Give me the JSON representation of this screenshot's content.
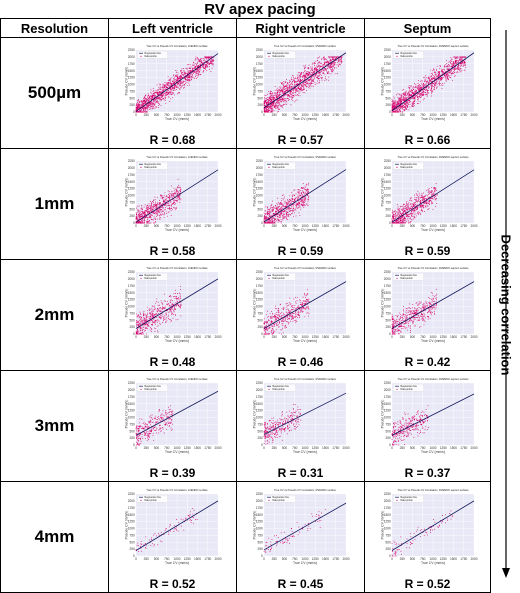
{
  "title": "RV apex pacing",
  "headers": [
    "Resolution",
    "Left ventricle",
    "Right ventricle",
    "Septum"
  ],
  "side_label": "Decreasing correlation",
  "colors": {
    "plot_bg": "#e8e8f6",
    "points": "#d6006b",
    "line": "#141a5e",
    "grid": "#ffffff"
  },
  "rows": [
    {
      "resolution": "500µm",
      "r": [
        "R = 0.68",
        "R = 0.57",
        "R = 0.66"
      ]
    },
    {
      "resolution": "1mm",
      "r": [
        "R = 0.58",
        "R = 0.59",
        "R = 0.59"
      ]
    },
    {
      "resolution": "2mm",
      "r": [
        "R = 0.48",
        "R = 0.46",
        "R = 0.42"
      ]
    },
    {
      "resolution": "3mm",
      "r": [
        "R = 0.39",
        "R = 0.31",
        "R = 0.37"
      ]
    },
    {
      "resolution": "4mm",
      "r": [
        "R = 0.52",
        "R = 0.45",
        "R = 0.52"
      ]
    }
  ],
  "chart_data": {
    "type": "scatter",
    "x_ticks": [
      "0",
      "250",
      "500",
      "750",
      "1000",
      "1250",
      "1500",
      "1750",
      "2000"
    ],
    "y_ticks": [
      "0",
      "250",
      "500",
      "750",
      "1000",
      "1250",
      "1500",
      "1750",
      "2000",
      "2250"
    ],
    "xlabel": "True CV (mm/s)",
    "ylabel": "Pseudo CV (mm/s)",
    "xlim": [
      0,
      2000
    ],
    "ylim": [
      0,
      2250
    ],
    "legend": [
      "Regression line",
      "Data points"
    ],
    "legend_position": "top-left",
    "panel_titles": [
      "True CV vs Pseudo CV Correlation, LVENDO surface",
      "True CV vs Pseudo CV Correlation, RVENDO surface",
      "True CV vs Pseudo CV Correlation, RVENDO septum surface"
    ],
    "panels": [
      [
        {
          "n": 1400,
          "xmax": 1900,
          "ymin": 0,
          "ymax": 2000,
          "slope": 1.05,
          "intercept": 20,
          "spread": 350
        },
        {
          "n": 1400,
          "xmax": 1900,
          "ymin": 0,
          "ymax": 2000,
          "slope": 1.0,
          "intercept": 150,
          "spread": 420
        },
        {
          "n": 1300,
          "xmax": 1800,
          "ymin": 0,
          "ymax": 2000,
          "slope": 1.05,
          "intercept": 50,
          "spread": 380
        }
      ],
      [
        {
          "n": 700,
          "xmax": 1100,
          "ymin": 0,
          "ymax": 1900,
          "slope": 0.95,
          "intercept": 30,
          "spread": 420
        },
        {
          "n": 700,
          "xmax": 1100,
          "ymin": 0,
          "ymax": 1900,
          "slope": 0.95,
          "intercept": 40,
          "spread": 420
        },
        {
          "n": 700,
          "xmax": 1100,
          "ymin": 0,
          "ymax": 1900,
          "slope": 0.95,
          "intercept": 30,
          "spread": 420
        }
      ],
      [
        {
          "n": 500,
          "xmax": 1100,
          "ymin": 0,
          "ymax": 1900,
          "slope": 0.9,
          "intercept": 200,
          "spread": 450
        },
        {
          "n": 450,
          "xmax": 1100,
          "ymin": 0,
          "ymax": 1900,
          "slope": 0.85,
          "intercept": 200,
          "spread": 450
        },
        {
          "n": 450,
          "xmax": 1100,
          "ymin": 0,
          "ymax": 1800,
          "slope": 0.85,
          "intercept": 200,
          "spread": 420
        }
      ],
      [
        {
          "n": 300,
          "xmax": 900,
          "ymin": 0,
          "ymax": 1800,
          "slope": 0.8,
          "intercept": 350,
          "spread": 420
        },
        {
          "n": 300,
          "xmax": 900,
          "ymin": 0,
          "ymax": 1800,
          "slope": 0.75,
          "intercept": 380,
          "spread": 430
        },
        {
          "n": 300,
          "xmax": 900,
          "ymin": 0,
          "ymax": 1800,
          "slope": 0.75,
          "intercept": 350,
          "spread": 420
        }
      ],
      [
        {
          "n": 90,
          "xmax": 1500,
          "ymin": 0,
          "ymax": 1900,
          "slope": 0.9,
          "intercept": 200,
          "spread": 280
        },
        {
          "n": 90,
          "xmax": 1500,
          "ymin": 0,
          "ymax": 1900,
          "slope": 0.85,
          "intercept": 220,
          "spread": 300
        },
        {
          "n": 90,
          "xmax": 1500,
          "ymin": 0,
          "ymax": 1900,
          "slope": 0.9,
          "intercept": 200,
          "spread": 280
        }
      ]
    ]
  }
}
